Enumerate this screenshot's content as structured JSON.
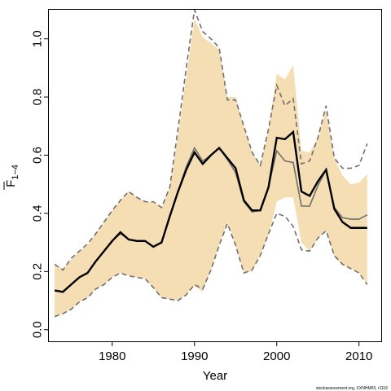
{
  "chart_data": {
    "type": "line",
    "xlabel": "Year",
    "ylabel_main": "F",
    "ylabel_sub": "1−4",
    "xlim": [
      1972.3,
      2012.7
    ],
    "ylim": [
      -0.04,
      1.1
    ],
    "x_ticks": [
      1980,
      1990,
      2000,
      2010
    ],
    "x_tick_labels": [
      "1980",
      "1990",
      "2000",
      "2010"
    ],
    "y_ticks": [
      0.0,
      0.2,
      0.4,
      0.6,
      0.8,
      1.0
    ],
    "y_tick_labels": [
      "0.0",
      "0.2",
      "0.4",
      "0.6",
      "0.8",
      "1.0"
    ],
    "grid": false,
    "colors": {
      "band": "#f5deb3",
      "main_line": "#000000",
      "secondary_line": "#707070",
      "dashed_line": "#707070"
    },
    "years": [
      1973,
      1974,
      1975,
      1976,
      1977,
      1978,
      1979,
      1980,
      1981,
      1982,
      1983,
      1984,
      1985,
      1986,
      1987,
      1988,
      1989,
      1990,
      1991,
      1992,
      1993,
      1994,
      1995,
      1996,
      1997,
      1998,
      1999,
      2000,
      2001,
      2002,
      2003,
      2004,
      2005,
      2006,
      2007,
      2008,
      2009,
      2010,
      2011
    ],
    "band_upper": [
      0.225,
      0.21,
      0.24,
      0.27,
      0.29,
      0.33,
      0.37,
      0.41,
      0.445,
      0.475,
      0.455,
      0.44,
      0.44,
      0.42,
      0.49,
      0.67,
      0.87,
      1.07,
      1.005,
      0.985,
      0.965,
      0.8,
      0.8,
      0.7,
      0.61,
      0.565,
      0.69,
      0.88,
      0.86,
      0.91,
      0.615,
      0.61,
      0.66,
      0.76,
      0.59,
      0.53,
      0.5,
      0.505,
      0.535
    ],
    "band_lower": [
      0.045,
      0.055,
      0.07,
      0.095,
      0.11,
      0.14,
      0.155,
      0.18,
      0.195,
      0.185,
      0.18,
      0.175,
      0.145,
      0.11,
      0.105,
      0.1,
      0.12,
      0.15,
      0.13,
      0.205,
      0.29,
      0.37,
      0.29,
      0.195,
      0.2,
      0.255,
      0.325,
      0.44,
      0.455,
      0.455,
      0.3,
      0.27,
      0.315,
      0.34,
      0.25,
      0.22,
      0.21,
      0.195,
      0.16
    ],
    "dashed_upper": [
      0.225,
      0.205,
      0.245,
      0.27,
      0.295,
      0.33,
      0.37,
      0.41,
      0.445,
      0.475,
      0.455,
      0.44,
      0.44,
      0.42,
      0.49,
      0.69,
      0.9,
      1.1,
      1.025,
      1.0,
      0.97,
      0.79,
      0.79,
      0.7,
      0.61,
      0.565,
      0.69,
      0.84,
      0.77,
      0.795,
      0.57,
      0.58,
      0.66,
      0.77,
      0.59,
      0.555,
      0.555,
      0.565,
      0.64
    ],
    "dashed_lower": [
      0.045,
      0.055,
      0.07,
      0.095,
      0.11,
      0.14,
      0.155,
      0.18,
      0.195,
      0.185,
      0.18,
      0.175,
      0.145,
      0.11,
      0.105,
      0.1,
      0.12,
      0.155,
      0.14,
      0.205,
      0.29,
      0.365,
      0.29,
      0.195,
      0.205,
      0.255,
      0.33,
      0.4,
      0.39,
      0.355,
      0.275,
      0.27,
      0.315,
      0.34,
      0.255,
      0.225,
      0.21,
      0.195,
      0.155
    ],
    "secondary": [
      0.135,
      0.13,
      0.155,
      0.18,
      0.195,
      0.235,
      0.27,
      0.305,
      0.33,
      0.31,
      0.305,
      0.305,
      0.285,
      0.3,
      0.39,
      0.475,
      0.56,
      0.625,
      0.58,
      0.6,
      0.625,
      0.585,
      0.54,
      0.44,
      0.405,
      0.41,
      0.49,
      0.615,
      0.58,
      0.575,
      0.425,
      0.425,
      0.495,
      0.55,
      0.42,
      0.385,
      0.38,
      0.38,
      0.395
    ],
    "main": [
      0.135,
      0.13,
      0.155,
      0.18,
      0.195,
      0.235,
      0.27,
      0.305,
      0.335,
      0.31,
      0.305,
      0.305,
      0.285,
      0.3,
      0.39,
      0.475,
      0.55,
      0.61,
      0.57,
      0.6,
      0.625,
      0.59,
      0.555,
      0.445,
      0.41,
      0.41,
      0.49,
      0.66,
      0.655,
      0.68,
      0.475,
      0.46,
      0.51,
      0.55,
      0.415,
      0.37,
      0.35,
      0.35,
      0.35
    ]
  },
  "footer": {
    "text": "stockassessment.org, XXNHM03, r1116"
  }
}
